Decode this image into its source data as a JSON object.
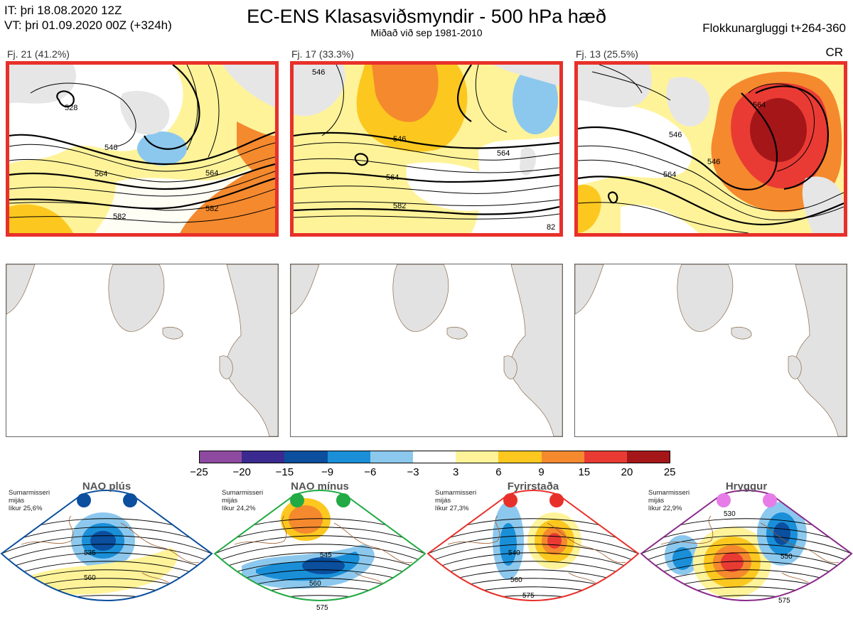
{
  "header": {
    "it_line": "IT: þri 18.08.2020 12Z",
    "vt_line": "VT: þri 01.09.2020 00Z  (+324h)",
    "title": "EC-ENS Klasasviðsmyndir - 500 hPa hæð",
    "subtitle": "Miðað við sep 1981-2010",
    "window": "Flokkunargluggi t+264-360",
    "cr": "CR"
  },
  "clusters": [
    {
      "label": "Fj. 21 (41.2%)",
      "contours": [
        "528",
        "546",
        "564",
        "582",
        "564",
        "582"
      ]
    },
    {
      "label": "Fj. 17 (33.3%)",
      "contours": [
        "546",
        "564",
        "582",
        "546",
        "564",
        "82"
      ]
    },
    {
      "label": "Fj. 13 (25.5%)",
      "contours": [
        "564",
        "546",
        "564",
        "546"
      ]
    }
  ],
  "colorbar": {
    "colors": [
      "#8e4aa0",
      "#3a2a8f",
      "#0b4f9e",
      "#1a8fd8",
      "#8cc8ee",
      "#ffffff",
      "#fff39a",
      "#fcc820",
      "#f5892e",
      "#e93b34",
      "#a51619"
    ],
    "ticks": [
      "−25",
      "−20",
      "−15",
      "−9",
      "−6",
      "−3",
      "3",
      "6",
      "9",
      "15",
      "20",
      "25"
    ]
  },
  "regimes": [
    {
      "name": "NAO plús",
      "season": "Sumarmisseri",
      "level": "mijás",
      "prob": "líkur 25,6%",
      "dot_color": "#0b4f9e",
      "frame_color": "#0b4f9e",
      "contours": [
        "535",
        "560"
      ]
    },
    {
      "name": "NAO mínus",
      "season": "Sumarmisseri",
      "level": "mijás",
      "prob": "líkur 24,2%",
      "dot_color": "#22aa44",
      "frame_color": "#22aa44",
      "contours": [
        "545",
        "560",
        "575"
      ]
    },
    {
      "name": "Fyrirstaða",
      "season": "Sumarmisseri",
      "level": "mijás",
      "prob": "líkur 27,3%",
      "dot_color": "#e8302a",
      "frame_color": "#e8302a",
      "contours": [
        "540",
        "560",
        "575"
      ]
    },
    {
      "name": "Hryggur",
      "season": "Sumarmisseri",
      "level": "mijás",
      "prob": "líkur 22,9%",
      "dot_color": "#e77ce8",
      "frame_color": "#8a2a8a",
      "contours": [
        "530",
        "550",
        "575"
      ]
    }
  ]
}
